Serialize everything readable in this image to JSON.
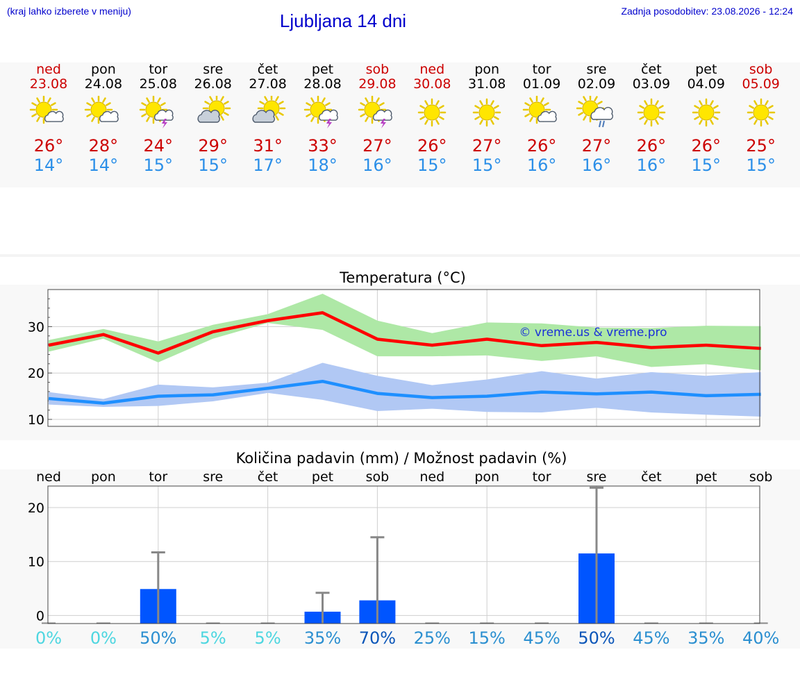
{
  "header": {
    "hint": "(kraj lahko izberete v meniju)",
    "title": "Ljubljana 14 dni",
    "updated": "Zadnja posodobitev: 23.08.2026 - 12:24"
  },
  "colors": {
    "weekday": "#000000",
    "weekend": "#cc0000",
    "max_temp": "#cc0000",
    "min_temp": "#2b8fe8",
    "max_line": "#ff0000",
    "max_band": "#aee8a6",
    "min_line": "#1e8fff",
    "min_band": "#b1c8f4",
    "rain_bar": "#0055ff",
    "error_bar": "#888888"
  },
  "days": [
    {
      "name": "ned",
      "date": "23.08",
      "weekend": true,
      "icon": "sun-cloud-icon",
      "tmax": "26°",
      "tmin": "14°"
    },
    {
      "name": "pon",
      "date": "24.08",
      "weekend": false,
      "icon": "sun-cloud-icon",
      "tmax": "28°",
      "tmin": "14°"
    },
    {
      "name": "tor",
      "date": "25.08",
      "weekend": false,
      "icon": "sun-cloud-storm-icon",
      "tmax": "24°",
      "tmin": "15°"
    },
    {
      "name": "sre",
      "date": "26.08",
      "weekend": false,
      "icon": "cloud-sun-icon",
      "tmax": "29°",
      "tmin": "15°"
    },
    {
      "name": "čet",
      "date": "27.08",
      "weekend": false,
      "icon": "cloud-sun-icon",
      "tmax": "31°",
      "tmin": "17°"
    },
    {
      "name": "pet",
      "date": "28.08",
      "weekend": false,
      "icon": "sun-cloud-storm-icon",
      "tmax": "33°",
      "tmin": "18°"
    },
    {
      "name": "sob",
      "date": "29.08",
      "weekend": true,
      "icon": "sun-cloud-storm-icon",
      "tmax": "27°",
      "tmin": "16°"
    },
    {
      "name": "ned",
      "date": "30.08",
      "weekend": true,
      "icon": "sun-icon",
      "tmax": "26°",
      "tmin": "15°"
    },
    {
      "name": "pon",
      "date": "31.08",
      "weekend": false,
      "icon": "sun-icon",
      "tmax": "27°",
      "tmin": "15°"
    },
    {
      "name": "tor",
      "date": "01.09",
      "weekend": false,
      "icon": "sun-cloud-icon",
      "tmax": "26°",
      "tmin": "16°"
    },
    {
      "name": "sre",
      "date": "02.09",
      "weekend": false,
      "icon": "sun-cloud-rain-icon",
      "tmax": "27°",
      "tmin": "16°"
    },
    {
      "name": "čet",
      "date": "03.09",
      "weekend": false,
      "icon": "sun-icon",
      "tmax": "26°",
      "tmin": "16°"
    },
    {
      "name": "pet",
      "date": "04.09",
      "weekend": false,
      "icon": "sun-icon",
      "tmax": "26°",
      "tmin": "15°"
    },
    {
      "name": "sob",
      "date": "05.09",
      "weekend": true,
      "icon": "sun-icon",
      "tmax": "25°",
      "tmin": "15°"
    }
  ],
  "chart_data": [
    {
      "type": "line",
      "title": "Temperatura (°C)",
      "x": [
        "23.08",
        "24.08",
        "25.08",
        "26.08",
        "27.08",
        "28.08",
        "29.08",
        "30.08",
        "31.08",
        "01.09",
        "02.09",
        "03.09",
        "04.09",
        "05.09"
      ],
      "ylim": [
        8.5,
        38
      ],
      "yticks": [
        10,
        20,
        30
      ],
      "grid": true,
      "watermark": "© vreme.us & vreme.pro",
      "series": [
        {
          "role": "max",
          "values": [
            26,
            28.3,
            24.3,
            28.9,
            31.3,
            33,
            27.3,
            26,
            27.3,
            25.9,
            26.6,
            25.5,
            26,
            25.3
          ],
          "band_low": [
            24.6,
            27.4,
            22.3,
            27.4,
            30.8,
            29.3,
            23.6,
            23.6,
            23.8,
            22.6,
            23.6,
            21.3,
            21.9,
            20.6
          ],
          "band_high": [
            27.1,
            29.5,
            26.8,
            30.4,
            32.7,
            37.1,
            31.3,
            28.6,
            30.9,
            30.7,
            29.8,
            29.7,
            30.2,
            30.1
          ]
        },
        {
          "role": "min",
          "values": [
            14.5,
            13.5,
            15,
            15.3,
            16.7,
            18.2,
            15.6,
            14.7,
            15,
            15.9,
            15.5,
            15.9,
            15.1,
            15.4
          ],
          "band_low": [
            13.2,
            12.7,
            12.9,
            13.9,
            15.7,
            14.2,
            11.8,
            12.3,
            11.6,
            11.5,
            12.5,
            11.5,
            11,
            10.6
          ],
          "band_high": [
            15.9,
            14.4,
            17.5,
            16.9,
            17.9,
            22.2,
            19.4,
            17.4,
            18.6,
            20.4,
            18.8,
            20.2,
            19.4,
            20.2
          ]
        }
      ]
    },
    {
      "type": "bar",
      "title": "Količina padavin (mm) / Možnost padavin (%)",
      "categories": [
        "ned",
        "pon",
        "tor",
        "sre",
        "čet",
        "pet",
        "sob",
        "ned",
        "pon",
        "tor",
        "sre",
        "čet",
        "pet",
        "sob"
      ],
      "ylim": [
        -1.5,
        24
      ],
      "yticks": [
        0,
        10,
        20
      ],
      "grid": true,
      "values": [
        0,
        0,
        4.9,
        0,
        0,
        0.7,
        2.8,
        0,
        0,
        0,
        11.5,
        0,
        0,
        0
      ],
      "error_high": [
        0,
        0,
        11.7,
        0,
        0,
        4.2,
        14.5,
        0,
        0,
        0,
        23.7,
        0,
        0,
        0
      ],
      "probability": [
        "0%",
        "0%",
        "50%",
        "5%",
        "5%",
        "35%",
        "70%",
        "25%",
        "15%",
        "45%",
        "50%",
        "45%",
        "35%",
        "40%"
      ],
      "probability_colors": [
        "#4dd6e0",
        "#4dd6e0",
        "#2b8fd0",
        "#4dd6e0",
        "#4dd6e0",
        "#2b8fd0",
        "#0a55b8",
        "#2b8fd0",
        "#2b8fd0",
        "#2b8fd0",
        "#0a55b8",
        "#2b8fd0",
        "#2b8fd0",
        "#2b8fd0"
      ]
    }
  ]
}
